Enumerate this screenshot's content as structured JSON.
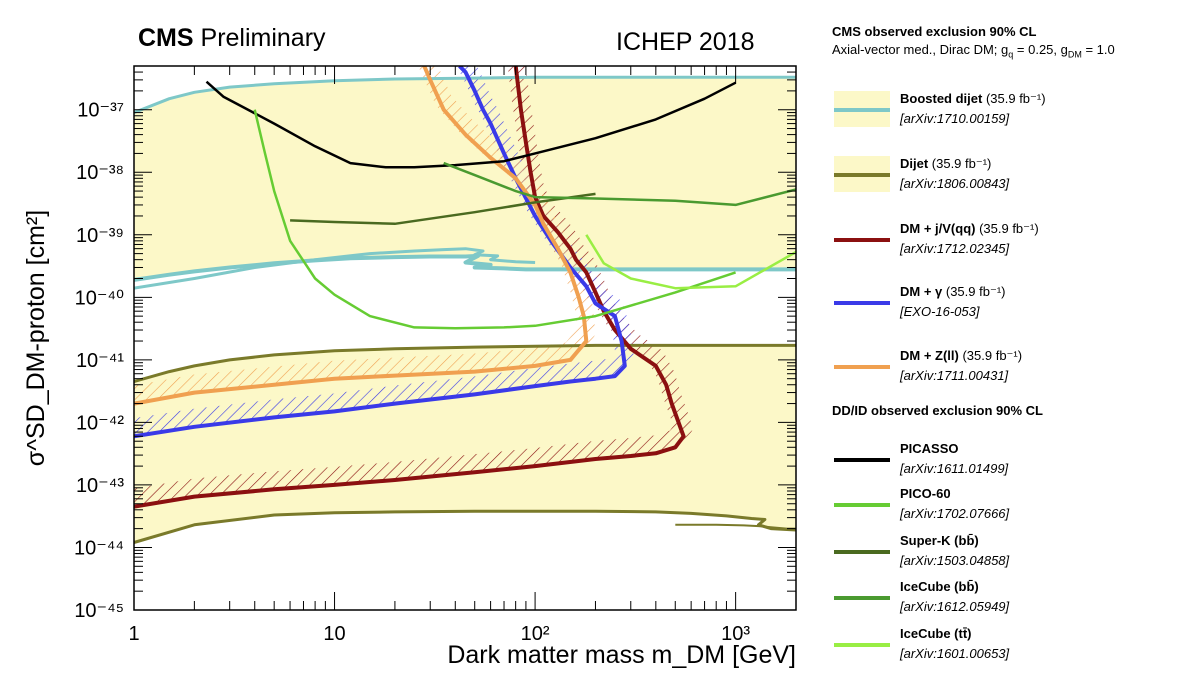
{
  "header": {
    "experiment": "CMS",
    "status": "Preliminary",
    "conference": "ICHEP 2018"
  },
  "legend": {
    "cms_title": "CMS observed exclusion 90% CL",
    "model_text": "Axial-vector med., Dirac DM; g_q = 0.25, g_DM = 1.0",
    "ddid_title": "DD/ID observed exclusion 90% CL",
    "entries": [
      {
        "name": "Boosted dijet",
        "lumi": "(35.9 fb⁻¹)",
        "ref": "[arXiv:1710.00159]",
        "color": "#7ec8c8",
        "filled": true
      },
      {
        "name": "Dijet",
        "lumi": "(35.9 fb⁻¹)",
        "ref": "[arXiv:1806.00843]",
        "color": "#7a7a2a",
        "filled": true
      },
      {
        "name": "DM + j/V(qq)",
        "lumi": "(35.9 fb⁻¹)",
        "ref": "[arXiv:1712.02345]",
        "color": "#8b1010",
        "filled": false
      },
      {
        "name": "DM + γ",
        "lumi": "(35.9 fb⁻¹)",
        "ref": "[EXO-16-053]",
        "color": "#3a3ae8",
        "filled": false
      },
      {
        "name": "DM + Z(ll)",
        "lumi": "(35.9 fb⁻¹)",
        "ref": "[arXiv:1711.00431]",
        "color": "#f0a050",
        "filled": false
      },
      {
        "name": "PICASSO",
        "lumi": "",
        "ref": "[arXiv:1611.01499]",
        "color": "#000000",
        "filled": false
      },
      {
        "name": "PICO-60",
        "lumi": "",
        "ref": "[arXiv:1702.07666]",
        "color": "#66cc33",
        "filled": false
      },
      {
        "name": "Super-K (bb̄)",
        "lumi": "",
        "ref": "[arXiv:1503.04858]",
        "color": "#4a6a20",
        "filled": false
      },
      {
        "name": "IceCube (bb̄)",
        "lumi": "",
        "ref": "[arXiv:1612.05949]",
        "color": "#4a9a30",
        "filled": false
      },
      {
        "name": "IceCube (tt̄)",
        "lumi": "",
        "ref": "[arXiv:1601.00653]",
        "color": "#99ee44",
        "filled": false
      }
    ]
  },
  "chart_data": {
    "type": "line",
    "xlabel": "Dark matter mass m_DM [GeV]",
    "ylabel": "σ^SD_DM-proton [cm²]",
    "xscale": "log",
    "yscale": "log",
    "xlim": [
      1,
      2000
    ],
    "ylim": [
      1e-45,
      5e-37
    ],
    "x_ticks": [
      1,
      10,
      100,
      1000
    ],
    "x_tick_labels": [
      "1",
      "10",
      "10²",
      "10³"
    ],
    "y_ticks": [
      1e-45,
      1e-44,
      1e-43,
      1e-42,
      1e-41,
      1e-40,
      1e-39,
      1e-38,
      1e-37
    ],
    "y_tick_labels": [
      "10⁻⁴⁵",
      "10⁻⁴⁴",
      "10⁻⁴³",
      "10⁻⁴²",
      "10⁻⁴¹",
      "10⁻⁴⁰",
      "10⁻³⁹",
      "10⁻³⁸",
      "10⁻³⁷"
    ],
    "fill_color": "#fcf8c8",
    "legend_position": "right, outside",
    "series": [
      {
        "name": "Dijet",
        "color": "#7a7a2a",
        "width": 3,
        "x": [
          1,
          2,
          5,
          10,
          20,
          50,
          100,
          200,
          400,
          600,
          900,
          1200,
          1400,
          1300,
          1500,
          2000
        ],
        "y": [
          1.2e-44,
          2.3e-44,
          3.3e-44,
          3.6e-44,
          3.7e-44,
          3.8e-44,
          3.8e-44,
          3.8e-44,
          3.7e-44,
          3.5e-44,
          3.2e-44,
          2.9e-44,
          2.8e-44,
          2.3e-44,
          2e-44,
          1.9e-44
        ]
      },
      {
        "name": "Dijet",
        "color": "#7a7a2a",
        "width": 3,
        "x": [
          1,
          1.5,
          2,
          3,
          5,
          10,
          20,
          50,
          100,
          200,
          400,
          1000,
          2000
        ],
        "y": [
          4.5e-42,
          6.5e-42,
          8e-42,
          1e-41,
          1.2e-41,
          1.4e-41,
          1.5e-41,
          1.6e-41,
          1.65e-41,
          1.7e-41,
          1.7e-41,
          1.7e-41,
          1.7e-41
        ]
      },
      {
        "name": "Dijet",
        "color": "#7a7a2a",
        "width": 2,
        "x": [
          500,
          800,
          1100,
          1300,
          1500,
          1800,
          2000
        ],
        "y": [
          2.3e-44,
          2.3e-44,
          2.25e-44,
          2.2e-44,
          2.1e-44,
          2e-44,
          2e-44
        ]
      },
      {
        "name": "Boosted dijet",
        "color": "#7ec8c8",
        "width": 4,
        "x": [
          1,
          1.5,
          2,
          3,
          5,
          8,
          12,
          20,
          30,
          45,
          52,
          45,
          60,
          50,
          70,
          90,
          150,
          300,
          600,
          1000,
          2000
        ],
        "y": [
          1.9e-40,
          2.3e-40,
          2.6e-40,
          3e-40,
          3.5e-40,
          3.9e-40,
          4.2e-40,
          4.4e-40,
          4.5e-40,
          4.5e-40,
          4.6e-40,
          3.6e-40,
          3.3e-40,
          3e-40,
          2.9e-40,
          2.8e-40,
          2.8e-40,
          2.8e-40,
          2.8e-40,
          2.8e-40,
          2.8e-40
        ]
      },
      {
        "name": "Boosted dijet",
        "color": "#7ec8c8",
        "width": 3,
        "x": [
          1,
          2,
          4,
          8,
          15,
          25,
          35,
          45,
          55,
          50,
          65,
          60,
          80,
          100
        ],
        "y": [
          1.4e-40,
          2e-40,
          3e-40,
          4e-40,
          5e-40,
          5.5e-40,
          5.8e-40,
          6e-40,
          5.5e-40,
          4.8e-40,
          4.6e-40,
          4e-40,
          3.7e-40,
          3.6e-40
        ]
      },
      {
        "name": "Boosted dijet",
        "color": "#7ec8c8",
        "width": 3,
        "x": [
          1,
          1.5,
          2,
          3,
          5,
          10,
          20,
          50,
          100,
          200,
          500,
          1000,
          2000
        ],
        "y": [
          9e-38,
          1.5e-37,
          1.9e-37,
          2.3e-37,
          2.6e-37,
          2.9e-37,
          3.1e-37,
          3.2e-37,
          3.3e-37,
          3.3e-37,
          3.3e-37,
          3.3e-37,
          3.3e-37
        ]
      },
      {
        "name": "DM + j/V(qq)",
        "color": "#8b1010",
        "width": 4,
        "x": [
          1,
          2,
          5,
          10,
          20,
          50,
          100,
          200,
          300,
          400,
          500,
          550,
          480,
          450,
          400,
          300,
          250,
          220,
          200,
          180,
          160,
          150,
          140,
          130,
          110,
          100,
          95,
          90,
          85,
          80
        ],
        "y": [
          4.5e-44,
          6.5e-44,
          8.5e-44,
          1e-43,
          1.2e-43,
          1.6e-43,
          2e-43,
          2.6e-43,
          2.9e-43,
          3.2e-43,
          4e-43,
          6e-43,
          2e-42,
          4e-42,
          8e-42,
          1.5e-41,
          3e-41,
          6e-41,
          1.2e-40,
          2.5e-40,
          4e-40,
          6e-40,
          8e-40,
          1.1e-39,
          2e-39,
          4e-39,
          1e-38,
          3e-38,
          1e-37,
          5e-37
        ]
      },
      {
        "name": "DM + γ",
        "color": "#3a3ae8",
        "width": 4,
        "x": [
          1,
          2,
          5,
          10,
          20,
          50,
          100,
          150,
          200,
          250,
          280,
          270,
          250,
          200,
          180,
          150,
          120,
          100,
          80,
          70,
          60,
          55,
          50,
          45,
          42
        ],
        "y": [
          6e-43,
          8.5e-43,
          1.2e-42,
          1.5e-42,
          2e-42,
          2.8e-42,
          3.8e-42,
          4.5e-42,
          5e-42,
          5.5e-42,
          8e-42,
          2e-41,
          5e-41,
          8e-41,
          1.5e-40,
          3e-40,
          8e-40,
          2e-39,
          8e-39,
          2e-38,
          6e-38,
          1e-37,
          2e-37,
          4e-37,
          5e-37
        ]
      },
      {
        "name": "DM + Z(ll)",
        "color": "#f0a050",
        "width": 4,
        "x": [
          1,
          2,
          5,
          10,
          20,
          50,
          100,
          150,
          180,
          175,
          165,
          150,
          130,
          110,
          100,
          80,
          60,
          45,
          35,
          30,
          28
        ],
        "y": [
          2e-42,
          3e-42,
          4e-42,
          5e-42,
          5.6e-42,
          6.5e-42,
          8e-42,
          1e-41,
          2e-41,
          5e-41,
          1e-40,
          2.5e-40,
          6e-40,
          1.5e-39,
          3e-39,
          8e-39,
          1.7e-38,
          4e-38,
          1e-37,
          3e-37,
          5e-37
        ]
      },
      {
        "name": "PICASSO",
        "color": "#000000",
        "width": 2.5,
        "x": [
          2.3,
          2.8,
          3.5,
          5,
          8,
          12,
          18,
          25,
          40,
          70,
          100,
          200,
          400,
          700,
          1000
        ],
        "y": [
          2.8e-37,
          1.6e-37,
          1.1e-37,
          6e-38,
          2.6e-38,
          1.4e-38,
          1.2e-38,
          1.2e-38,
          1.3e-38,
          1.5e-38,
          2e-38,
          3.5e-38,
          7e-38,
          1.5e-37,
          2.7e-37
        ]
      },
      {
        "name": "PICO-60",
        "color": "#66cc33",
        "width": 2.5,
        "x": [
          4,
          4.5,
          5,
          6,
          8,
          10,
          15,
          25,
          40,
          70,
          100,
          200,
          500,
          1000
        ],
        "y": [
          1e-37,
          2e-38,
          5e-39,
          8e-40,
          2e-40,
          1.1e-40,
          5e-41,
          3.3e-41,
          3.2e-41,
          3.3e-41,
          3.5e-41,
          5e-41,
          1.2e-40,
          2.5e-40
        ]
      },
      {
        "name": "Super-K (bb̄)",
        "color": "#4a6a20",
        "width": 2.5,
        "x": [
          6,
          10,
          20,
          50,
          100,
          200
        ],
        "y": [
          1.7e-39,
          1.6e-39,
          1.5e-39,
          2.3e-39,
          3.3e-39,
          4.5e-39
        ]
      },
      {
        "name": "IceCube (bb̄)",
        "color": "#4a9a30",
        "width": 2.5,
        "x": [
          35,
          50,
          80,
          100,
          200,
          500,
          1000,
          2000
        ],
        "y": [
          1.4e-38,
          9e-39,
          5e-39,
          4e-39,
          3.8e-39,
          3.5e-39,
          3e-39,
          5.3e-39
        ]
      },
      {
        "name": "IceCube (tt̄)",
        "color": "#99ee44",
        "width": 2.5,
        "x": [
          180,
          220,
          300,
          500,
          1000,
          2000
        ],
        "y": [
          1e-39,
          3.5e-40,
          2e-40,
          1.4e-40,
          1.5e-40,
          5.3e-40
        ]
      }
    ]
  }
}
